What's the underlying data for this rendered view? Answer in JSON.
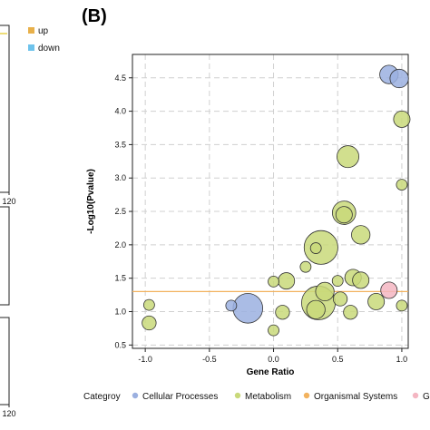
{
  "panel_label": "(B)",
  "left_panel": {
    "legend": [
      {
        "label": "up",
        "color": "#E8B04A"
      },
      {
        "label": "down",
        "color": "#6EC3EC"
      }
    ],
    "tick_labels": [
      "120",
      "120"
    ]
  },
  "colors": {
    "Cellular Processes": "#9BB0E0",
    "Metabolism": "#C9D97A",
    "Organismal Systems": "#F2B25E",
    "G": "#F4B6C2",
    "threshold_line": "#F2B25E",
    "grid": "#D0D0D0"
  },
  "chart_data": {
    "type": "scatter",
    "xlabel": "Gene Ratio",
    "ylabel": "-Log10(Pvalue)",
    "xlim": [
      -1.1,
      1.05
    ],
    "ylim": [
      0.45,
      4.85
    ],
    "xticks": [
      -1.0,
      -0.5,
      0.0,
      0.5,
      1.0
    ],
    "xtick_labels": [
      "-1.0",
      "-0.5",
      "0.0",
      "0.5",
      "1.0"
    ],
    "yticks": [
      0.5,
      1.0,
      1.5,
      2.0,
      2.5,
      3.0,
      3.5,
      4.0,
      4.5
    ],
    "ytick_labels": [
      "0.5",
      "1.0",
      "1.5",
      "2.0",
      "2.5",
      "3.0",
      "3.5",
      "4.0",
      "4.5"
    ],
    "grid": true,
    "threshold_y": 1.3,
    "legend_title": "Categroy",
    "legend_position": "bottom",
    "legend": [
      "Cellular Processes",
      "Metabolism",
      "Organismal Systems",
      "G"
    ],
    "points": [
      {
        "x": 0.9,
        "y": 4.55,
        "size": 4,
        "category": "Cellular Processes"
      },
      {
        "x": 0.98,
        "y": 4.49,
        "size": 4,
        "category": "Cellular Processes"
      },
      {
        "x": 1.0,
        "y": 3.88,
        "size": 3,
        "category": "Metabolism"
      },
      {
        "x": 0.58,
        "y": 3.32,
        "size": 6,
        "category": "Metabolism"
      },
      {
        "x": 1.0,
        "y": 2.9,
        "size": 1,
        "category": "Metabolism"
      },
      {
        "x": 0.55,
        "y": 2.48,
        "size": 7,
        "category": "Metabolism"
      },
      {
        "x": 0.55,
        "y": 2.45,
        "size": 3,
        "category": "Metabolism"
      },
      {
        "x": 0.68,
        "y": 2.15,
        "size": 4,
        "category": "Metabolism"
      },
      {
        "x": 0.37,
        "y": 1.96,
        "size": 16,
        "category": "Metabolism"
      },
      {
        "x": 0.33,
        "y": 1.95,
        "size": 1,
        "category": "Metabolism"
      },
      {
        "x": 0.25,
        "y": 1.67,
        "size": 1,
        "category": "Metabolism"
      },
      {
        "x": 0.62,
        "y": 1.51,
        "size": 3,
        "category": "Metabolism"
      },
      {
        "x": 0.68,
        "y": 1.47,
        "size": 3,
        "category": "Metabolism"
      },
      {
        "x": 0.1,
        "y": 1.46,
        "size": 3,
        "category": "Metabolism"
      },
      {
        "x": 0.0,
        "y": 1.45,
        "size": 1,
        "category": "Metabolism"
      },
      {
        "x": 0.5,
        "y": 1.46,
        "size": 1,
        "category": "Metabolism"
      },
      {
        "x": 0.4,
        "y": 1.3,
        "size": 4,
        "category": "Metabolism"
      },
      {
        "x": 0.9,
        "y": 1.32,
        "size": 3,
        "category": "G"
      },
      {
        "x": 0.52,
        "y": 1.19,
        "size": 2,
        "category": "Metabolism"
      },
      {
        "x": 0.8,
        "y": 1.15,
        "size": 3,
        "category": "Metabolism"
      },
      {
        "x": 0.35,
        "y": 1.13,
        "size": 16,
        "category": "Metabolism"
      },
      {
        "x": 0.33,
        "y": 1.03,
        "size": 4,
        "category": "Metabolism"
      },
      {
        "x": 0.6,
        "y": 0.99,
        "size": 2,
        "category": "Metabolism"
      },
      {
        "x": 0.07,
        "y": 0.99,
        "size": 2,
        "category": "Metabolism"
      },
      {
        "x": -0.97,
        "y": 1.1,
        "size": 1,
        "category": "Metabolism"
      },
      {
        "x": -0.33,
        "y": 1.09,
        "size": 1,
        "category": "Cellular Processes"
      },
      {
        "x": -0.2,
        "y": 1.05,
        "size": 12,
        "category": "Cellular Processes"
      },
      {
        "x": 1.0,
        "y": 1.09,
        "size": 1,
        "category": "Metabolism"
      },
      {
        "x": -0.97,
        "y": 0.83,
        "size": 2,
        "category": "Metabolism"
      },
      {
        "x": 0.0,
        "y": 0.72,
        "size": 1,
        "category": "Metabolism"
      }
    ]
  }
}
